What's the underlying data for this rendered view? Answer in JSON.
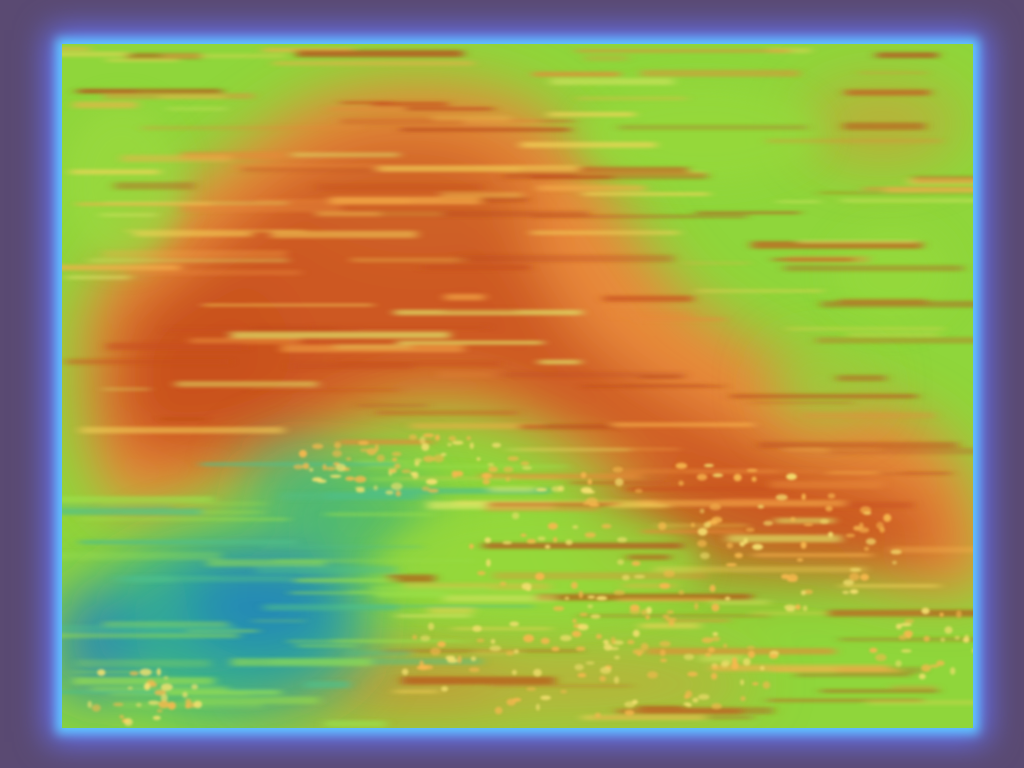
{
  "colors": {
    "background": "#5a4a72",
    "border_glow_inner": "#5fc8ff",
    "border_glow_outer": "#6a74ff",
    "base_green": "#8fd63b",
    "warm_orange": "#e8893a",
    "hot_red": "#c8501e",
    "highlight_yellow": "#f4d65a",
    "cool_teal": "#2aa89a",
    "cool_blue": "#1f7fc0"
  },
  "image": {
    "kind": "heatmap-overlay",
    "colormap": "jet-like"
  }
}
